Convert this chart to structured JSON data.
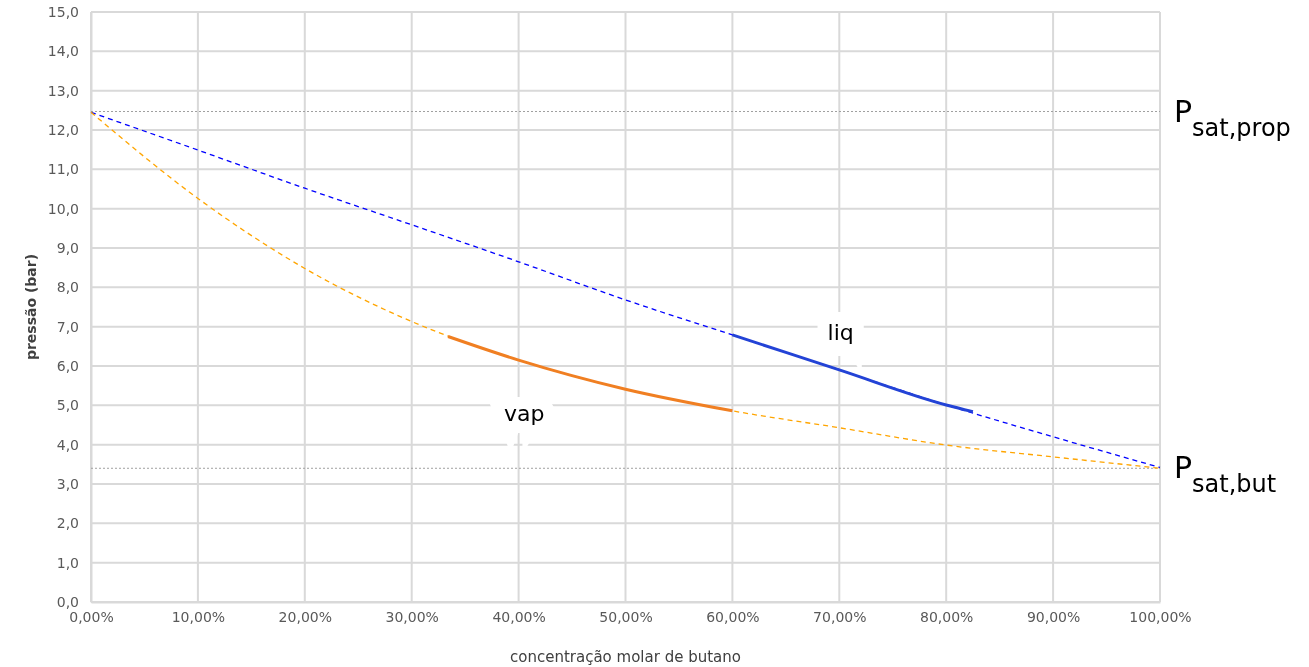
{
  "chart_data": {
    "type": "line",
    "xlabel": "concentração molar de butano",
    "ylabel": "pressão (bar)",
    "xlim": [
      0,
      100
    ],
    "ylim": [
      0,
      15
    ],
    "xticks": [
      {
        "value": 0,
        "label": "0,00%"
      },
      {
        "value": 10,
        "label": "10,00%"
      },
      {
        "value": 20,
        "label": "20,00%"
      },
      {
        "value": 30,
        "label": "30,00%"
      },
      {
        "value": 40,
        "label": "40,00%"
      },
      {
        "value": 50,
        "label": "50,00%"
      },
      {
        "value": 60,
        "label": "60,00%"
      },
      {
        "value": 70,
        "label": "70,00%"
      },
      {
        "value": 80,
        "label": "80,00%"
      },
      {
        "value": 90,
        "label": "90,00%"
      },
      {
        "value": 100,
        "label": "100,00%"
      }
    ],
    "yticks": [
      {
        "value": 0,
        "label": "0,0"
      },
      {
        "value": 1,
        "label": "1,0"
      },
      {
        "value": 2,
        "label": "2,0"
      },
      {
        "value": 3,
        "label": "3,0"
      },
      {
        "value": 4,
        "label": "4,0"
      },
      {
        "value": 5,
        "label": "5,0"
      },
      {
        "value": 6,
        "label": "6,0"
      },
      {
        "value": 7,
        "label": "7,0"
      },
      {
        "value": 8,
        "label": "8,0"
      },
      {
        "value": 9,
        "label": "9,0"
      },
      {
        "value": 10,
        "label": "10,0"
      },
      {
        "value": 11,
        "label": "11,0"
      },
      {
        "value": 12,
        "label": "12,0"
      },
      {
        "value": 13,
        "label": "13,0"
      },
      {
        "value": 14,
        "label": "14,0"
      },
      {
        "value": 15,
        "label": "15,0"
      }
    ],
    "grid": true,
    "marker": "none",
    "series": [
      {
        "color": "#0000ff",
        "line_style": "dashed",
        "x": [
          0,
          10,
          20,
          30,
          40,
          50,
          60,
          70,
          80,
          90,
          100
        ],
        "values": [
          12.45,
          11.49,
          10.52,
          9.59,
          8.65,
          7.68,
          6.79,
          5.9,
          5.01,
          4.2,
          3.42
        ]
      },
      {
        "color": "#ffa500",
        "line_style": "dashed",
        "x": [
          0,
          10,
          20,
          30,
          40,
          50,
          60,
          70,
          80,
          90,
          100
        ],
        "values": [
          12.45,
          10.26,
          8.48,
          7.13,
          6.15,
          5.41,
          4.86,
          4.43,
          3.99,
          3.69,
          3.4
        ]
      },
      {
        "name": "vap",
        "color": "#f07f22",
        "line_style": "solid",
        "x": [
          33.4,
          40,
          50,
          60
        ],
        "values": [
          6.75,
          6.15,
          5.41,
          4.86
        ]
      },
      {
        "name": "liq",
        "color": "#2343d6",
        "line_style": "solid",
        "x": [
          60,
          70,
          80,
          82.5
        ],
        "values": [
          6.79,
          5.9,
          5.01,
          4.84
        ]
      }
    ],
    "ref_lines": [
      {
        "axis": "y",
        "value": 12.47,
        "label": "P$_{sat,prop}$",
        "color": "#a0a0a0",
        "line_style": "dotted"
      },
      {
        "axis": "y",
        "value": 3.4,
        "label": "P$_{sat,but}$",
        "color": "#a0a0a0",
        "line_style": "dotted"
      }
    ]
  }
}
